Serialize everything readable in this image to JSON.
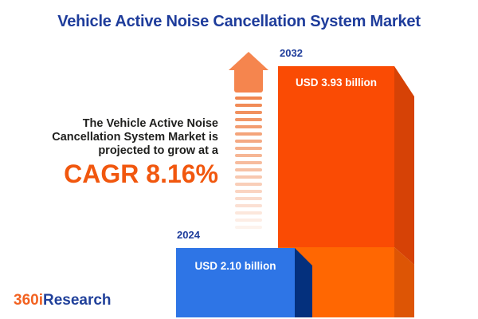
{
  "title": "Vehicle Active Noise Cancellation System Market",
  "annotation": {
    "line1": "The Vehicle Active Noise",
    "line2": "Cancellation System Market is",
    "line3": "projected to grow at a",
    "cagr": "CAGR 8.16%"
  },
  "bars": {
    "y2032": {
      "year": "2032",
      "value_label": "USD 3.93 billion"
    },
    "y2024": {
      "year": "2024",
      "value_label": "USD 2.10 billion"
    }
  },
  "logo": {
    "part1": "360i",
    "part2": "Research"
  },
  "colors": {
    "title_blue": "#1e3c9b",
    "cagr_orange": "#f1570e",
    "bar_2024_face": "#2e75e6",
    "bar_2024_side": "#04307d",
    "bar_2032_face_upper": "#fa4b04",
    "bar_2032_face_lower": "#ff6702",
    "bar_2032_side_upper": "#d64206",
    "bar_2032_side_lower": "#dd5505",
    "arrow_salmon": "#f5854e",
    "logo_orange": "#f26221",
    "logo_blue": "#20409a"
  },
  "chart_data": {
    "type": "bar",
    "title": "Vehicle Active Noise Cancellation System Market",
    "categories": [
      "2024",
      "2032"
    ],
    "values": [
      2.1,
      3.93
    ],
    "unit": "USD billion",
    "value_labels": [
      "USD 2.10 billion",
      "USD 3.93 billion"
    ],
    "cagr_percent": 8.16,
    "annotation": "The Vehicle Active Noise Cancellation System Market is projected to grow at a CAGR 8.16%",
    "bar_colors": [
      "#2e75e6",
      "#fa4b04"
    ],
    "axes": "none",
    "grid": false,
    "legend": "none"
  }
}
